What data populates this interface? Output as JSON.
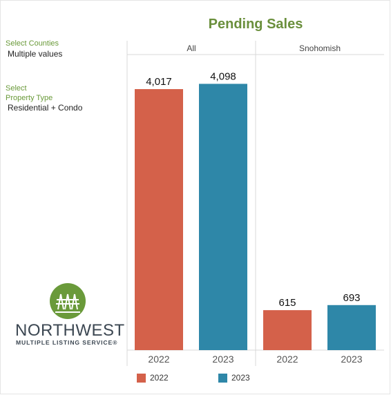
{
  "chart_data": {
    "type": "bar",
    "title": "Pending Sales",
    "panels": [
      {
        "name": "All",
        "categories": [
          "2022",
          "2023"
        ],
        "values": [
          4017,
          4098
        ],
        "labels": [
          "4,017",
          "4,098"
        ]
      },
      {
        "name": "Snohomish",
        "categories": [
          "2022",
          "2023"
        ],
        "values": [
          615,
          693
        ],
        "labels": [
          "615",
          "693"
        ]
      }
    ],
    "series_colors": {
      "2022": "#d4614a",
      "2023": "#2e87a8"
    },
    "legend": [
      {
        "label": "2022",
        "color": "#d4614a"
      },
      {
        "label": "2023",
        "color": "#2e87a8"
      }
    ],
    "ylim": [
      0,
      4400
    ],
    "legend_position": "bottom",
    "grid": false
  },
  "filters": {
    "counties_label": "Select Counties",
    "counties_value": "Multiple values",
    "property_label_line1": "Select",
    "property_label_line2": "Property Type",
    "property_value": "Residential + Condo"
  },
  "logo": {
    "wordmark": "NORTHWEST",
    "subtitle": "MULTIPLE LISTING SERVICE®",
    "color": "#6a9a3a"
  }
}
